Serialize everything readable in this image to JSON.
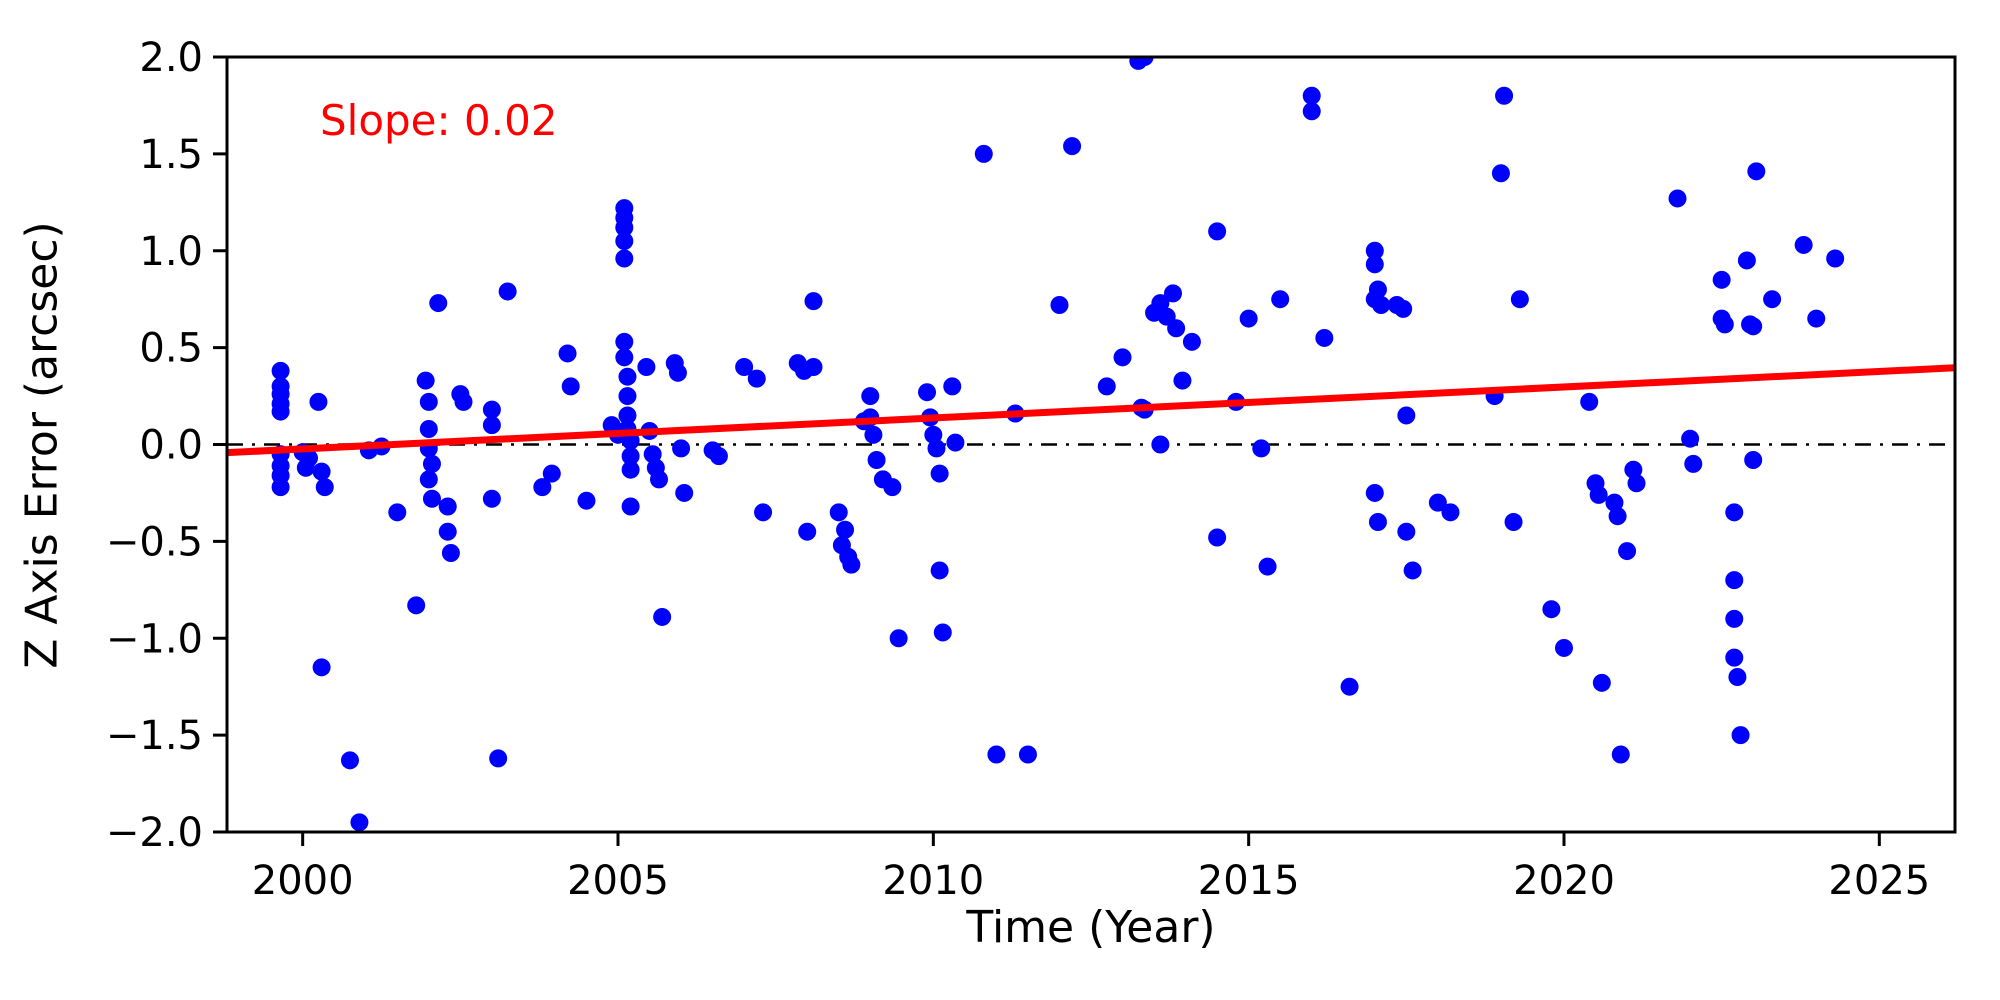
{
  "chart_data": {
    "type": "scatter",
    "title": "",
    "xlabel": "Time (Year)",
    "ylabel": "Z Axis Error (arcsec)",
    "annotation": "Slope: 0.02",
    "annotation_color": "#ff0000",
    "xlim": [
      1998.8,
      2026.2
    ],
    "ylim": [
      -2.0,
      2.0
    ],
    "x_ticks": [
      2000,
      2005,
      2010,
      2015,
      2020,
      2025
    ],
    "y_ticks": [
      -2.0,
      -1.5,
      -1.0,
      -0.5,
      0.0,
      0.5,
      1.0,
      1.5,
      2.0
    ],
    "grid": false,
    "legend": "none",
    "marker_color": "#0000ff",
    "marker_radius": 9,
    "zero_line": {
      "y": 0.0,
      "color": "#000000",
      "style": "dash-dot"
    },
    "trend_line": {
      "slope": 0.02,
      "color": "#ff0000",
      "x1": 1998.8,
      "y1": -0.042,
      "x2": 2026.2,
      "y2": 0.396
    },
    "points": [
      [
        1999.65,
        0.38
      ],
      [
        1999.65,
        0.3
      ],
      [
        1999.65,
        0.26
      ],
      [
        1999.65,
        0.21
      ],
      [
        1999.65,
        0.17
      ],
      [
        1999.65,
        -0.05
      ],
      [
        1999.65,
        -0.11
      ],
      [
        1999.65,
        -0.16
      ],
      [
        1999.65,
        -0.22
      ],
      [
        2000.0,
        -0.04
      ],
      [
        2000.05,
        -0.12
      ],
      [
        2000.1,
        -0.07
      ],
      [
        2000.25,
        0.22
      ],
      [
        2000.3,
        -0.14
      ],
      [
        2000.35,
        -0.22
      ],
      [
        2000.3,
        -1.15
      ],
      [
        2000.75,
        -1.63
      ],
      [
        2000.9,
        -1.95
      ],
      [
        2001.05,
        -0.03
      ],
      [
        2001.25,
        -0.01
      ],
      [
        2001.5,
        -0.35
      ],
      [
        2001.8,
        -0.83
      ],
      [
        2001.95,
        0.33
      ],
      [
        2002.0,
        0.22
      ],
      [
        2002.0,
        0.08
      ],
      [
        2002.0,
        -0.02
      ],
      [
        2002.05,
        -0.1
      ],
      [
        2002.0,
        -0.18
      ],
      [
        2002.05,
        -0.28
      ],
      [
        2002.15,
        0.73
      ],
      [
        2002.3,
        -0.32
      ],
      [
        2002.3,
        -0.45
      ],
      [
        2002.35,
        -0.56
      ],
      [
        2002.5,
        0.26
      ],
      [
        2002.55,
        0.22
      ],
      [
        2003.0,
        0.18
      ],
      [
        2003.0,
        0.1
      ],
      [
        2003.0,
        -0.28
      ],
      [
        2003.1,
        -1.62
      ],
      [
        2003.25,
        0.79
      ],
      [
        2003.8,
        -0.22
      ],
      [
        2003.95,
        -0.15
      ],
      [
        2004.2,
        0.47
      ],
      [
        2004.25,
        0.3
      ],
      [
        2004.5,
        -0.29
      ],
      [
        2004.9,
        0.1
      ],
      [
        2005.0,
        0.05
      ],
      [
        2005.1,
        1.22
      ],
      [
        2005.1,
        1.17
      ],
      [
        2005.1,
        1.12
      ],
      [
        2005.1,
        1.05
      ],
      [
        2005.1,
        0.96
      ],
      [
        2005.1,
        0.53
      ],
      [
        2005.1,
        0.45
      ],
      [
        2005.15,
        0.35
      ],
      [
        2005.15,
        0.25
      ],
      [
        2005.15,
        0.15
      ],
      [
        2005.15,
        0.08
      ],
      [
        2005.2,
        0.02
      ],
      [
        2005.2,
        -0.06
      ],
      [
        2005.2,
        -0.13
      ],
      [
        2005.2,
        -0.32
      ],
      [
        2005.45,
        0.4
      ],
      [
        2005.5,
        0.07
      ],
      [
        2005.55,
        -0.05
      ],
      [
        2005.6,
        -0.12
      ],
      [
        2005.65,
        -0.18
      ],
      [
        2005.7,
        -0.89
      ],
      [
        2005.9,
        0.42
      ],
      [
        2005.95,
        0.37
      ],
      [
        2006.0,
        -0.02
      ],
      [
        2006.05,
        -0.25
      ],
      [
        2006.5,
        -0.03
      ],
      [
        2006.6,
        -0.06
      ],
      [
        2007.0,
        0.4
      ],
      [
        2007.2,
        0.34
      ],
      [
        2007.3,
        -0.35
      ],
      [
        2007.85,
        0.42
      ],
      [
        2007.95,
        0.38
      ],
      [
        2008.1,
        0.74
      ],
      [
        2008.1,
        0.4
      ],
      [
        2008.0,
        -0.45
      ],
      [
        2008.5,
        -0.35
      ],
      [
        2008.55,
        -0.52
      ],
      [
        2008.6,
        -0.44
      ],
      [
        2008.65,
        -0.58
      ],
      [
        2008.7,
        -0.62
      ],
      [
        2008.9,
        0.12
      ],
      [
        2009.0,
        0.25
      ],
      [
        2009.0,
        0.14
      ],
      [
        2009.05,
        0.05
      ],
      [
        2009.1,
        -0.08
      ],
      [
        2009.2,
        -0.18
      ],
      [
        2009.35,
        -0.22
      ],
      [
        2009.45,
        -1.0
      ],
      [
        2009.9,
        0.27
      ],
      [
        2009.95,
        0.14
      ],
      [
        2010.0,
        0.05
      ],
      [
        2010.05,
        -0.02
      ],
      [
        2010.1,
        -0.15
      ],
      [
        2010.1,
        -0.65
      ],
      [
        2010.15,
        -0.97
      ],
      [
        2010.3,
        0.3
      ],
      [
        2010.35,
        0.01
      ],
      [
        2010.8,
        1.5
      ],
      [
        2011.0,
        -1.6
      ],
      [
        2011.3,
        0.16
      ],
      [
        2011.5,
        -1.6
      ],
      [
        2012.0,
        0.72
      ],
      [
        2012.2,
        1.54
      ],
      [
        2012.75,
        0.3
      ],
      [
        2013.0,
        0.45
      ],
      [
        2013.25,
        1.98
      ],
      [
        2013.35,
        2.0
      ],
      [
        2013.3,
        0.19
      ],
      [
        2013.35,
        0.18
      ],
      [
        2013.5,
        0.68
      ],
      [
        2013.6,
        0.73
      ],
      [
        2013.7,
        0.66
      ],
      [
        2013.8,
        0.78
      ],
      [
        2013.85,
        0.6
      ],
      [
        2013.6,
        0.0
      ],
      [
        2013.95,
        0.33
      ],
      [
        2014.1,
        0.53
      ],
      [
        2014.5,
        1.1
      ],
      [
        2014.5,
        -0.48
      ],
      [
        2014.8,
        0.22
      ],
      [
        2015.0,
        0.65
      ],
      [
        2015.2,
        -0.02
      ],
      [
        2015.3,
        -0.63
      ],
      [
        2015.5,
        0.75
      ],
      [
        2016.0,
        1.8
      ],
      [
        2016.0,
        1.72
      ],
      [
        2016.2,
        0.55
      ],
      [
        2016.6,
        -1.25
      ],
      [
        2017.0,
        1.0
      ],
      [
        2017.0,
        0.93
      ],
      [
        2017.05,
        0.8
      ],
      [
        2017.0,
        0.75
      ],
      [
        2017.1,
        0.72
      ],
      [
        2017.0,
        -0.25
      ],
      [
        2017.05,
        -0.4
      ],
      [
        2017.35,
        0.72
      ],
      [
        2017.45,
        0.7
      ],
      [
        2017.5,
        0.15
      ],
      [
        2017.5,
        -0.45
      ],
      [
        2017.6,
        -0.65
      ],
      [
        2018.0,
        -0.3
      ],
      [
        2018.2,
        -0.35
      ],
      [
        2018.9,
        0.25
      ],
      [
        2019.0,
        1.4
      ],
      [
        2019.05,
        1.8
      ],
      [
        2019.2,
        -0.4
      ],
      [
        2019.3,
        0.75
      ],
      [
        2019.8,
        -0.85
      ],
      [
        2020.0,
        -1.05
      ],
      [
        2020.4,
        0.22
      ],
      [
        2020.5,
        -0.2
      ],
      [
        2020.55,
        -0.26
      ],
      [
        2020.6,
        -1.23
      ],
      [
        2020.8,
        -0.3
      ],
      [
        2020.85,
        -0.37
      ],
      [
        2020.9,
        -1.6
      ],
      [
        2021.0,
        -0.55
      ],
      [
        2021.1,
        -0.13
      ],
      [
        2021.15,
        -0.2
      ],
      [
        2021.8,
        1.27
      ],
      [
        2022.0,
        0.03
      ],
      [
        2022.05,
        -0.1
      ],
      [
        2022.5,
        0.85
      ],
      [
        2022.5,
        0.65
      ],
      [
        2022.55,
        0.62
      ],
      [
        2022.7,
        -0.35
      ],
      [
        2022.7,
        -0.7
      ],
      [
        2022.7,
        -0.9
      ],
      [
        2022.7,
        -1.1
      ],
      [
        2022.75,
        -1.2
      ],
      [
        2022.8,
        -1.5
      ],
      [
        2022.9,
        0.95
      ],
      [
        2022.95,
        0.62
      ],
      [
        2023.0,
        0.61
      ],
      [
        2023.0,
        -0.08
      ],
      [
        2023.05,
        1.41
      ],
      [
        2023.3,
        0.75
      ],
      [
        2023.8,
        1.03
      ],
      [
        2024.0,
        0.65
      ],
      [
        2024.3,
        0.96
      ]
    ]
  }
}
